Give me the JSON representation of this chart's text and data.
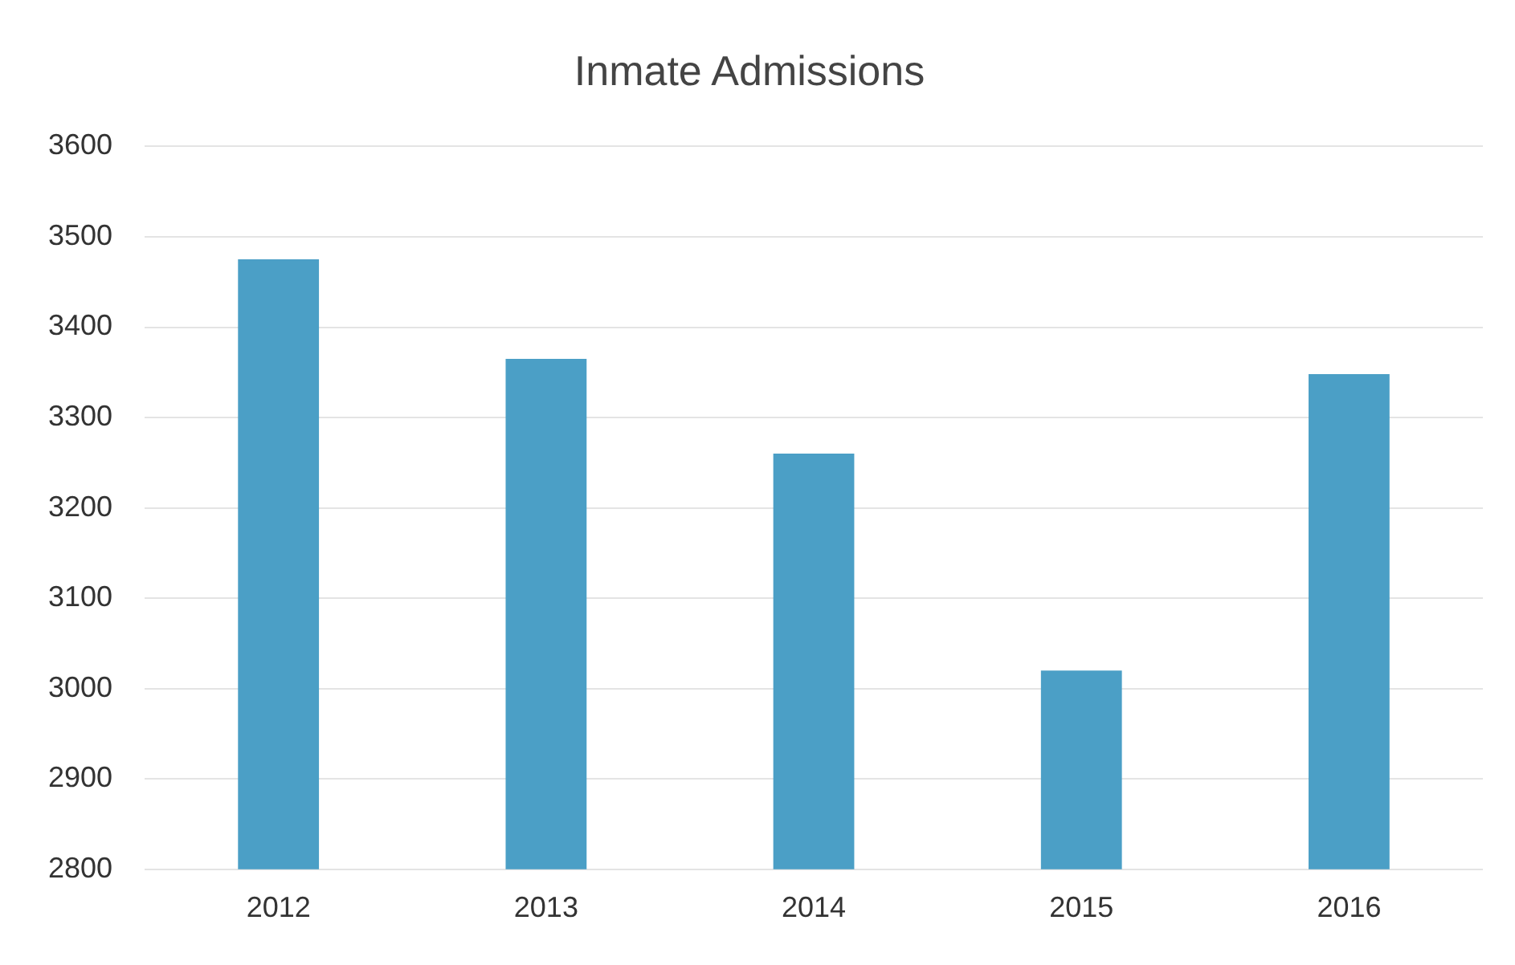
{
  "chart_data": {
    "type": "bar",
    "title": "Inmate Admissions",
    "categories": [
      "2012",
      "2013",
      "2014",
      "2015",
      "2016"
    ],
    "values": [
      3475,
      3365,
      3260,
      3020,
      3348
    ],
    "color": "#4b9fc6",
    "ylim": [
      2800,
      3600
    ],
    "yticks": [
      2800,
      2900,
      3000,
      3100,
      3200,
      3300,
      3400,
      3500,
      3600
    ],
    "grid": "y"
  }
}
